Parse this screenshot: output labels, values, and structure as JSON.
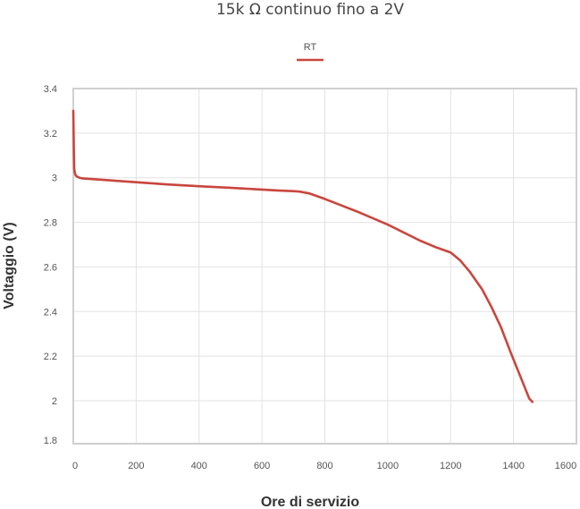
{
  "chart_data": {
    "type": "line",
    "title": "15k Ω continuo fino a 2V",
    "xlabel": "Ore di servizio",
    "ylabel": "Voltaggio (V)",
    "xlim": [
      0,
      1600
    ],
    "ylim": [
      1.8,
      3.4
    ],
    "x_ticks": [
      "0",
      "200",
      "400",
      "600",
      "800",
      "1000",
      "1200",
      "1400",
      "1600"
    ],
    "y_ticks": [
      "3.4",
      "3.2",
      "3",
      "2.8",
      "2.6",
      "2.4",
      "2.2",
      "2",
      "1.8"
    ],
    "legend_position": "top-center",
    "grid": true,
    "colors": {
      "series": "#c9463d",
      "grid": "#e2e2e2",
      "frame": "#cfcfcf"
    },
    "series": [
      {
        "name": "RT",
        "x": [
          0,
          1,
          2,
          3,
          5,
          8,
          12,
          20,
          30,
          50,
          100,
          200,
          300,
          400,
          500,
          600,
          650,
          700,
          720,
          750,
          800,
          900,
          1000,
          1100,
          1150,
          1200,
          1230,
          1260,
          1300,
          1330,
          1360,
          1390,
          1410,
          1430,
          1450,
          1460
        ],
        "y": [
          3.3,
          3.2,
          3.1,
          3.04,
          3.02,
          3.01,
          3.005,
          3.0,
          2.997,
          2.995,
          2.99,
          2.98,
          2.97,
          2.962,
          2.955,
          2.947,
          2.943,
          2.94,
          2.938,
          2.93,
          2.905,
          2.85,
          2.79,
          2.72,
          2.69,
          2.665,
          2.63,
          2.58,
          2.5,
          2.42,
          2.33,
          2.22,
          2.15,
          2.08,
          2.01,
          1.995
        ]
      }
    ]
  }
}
